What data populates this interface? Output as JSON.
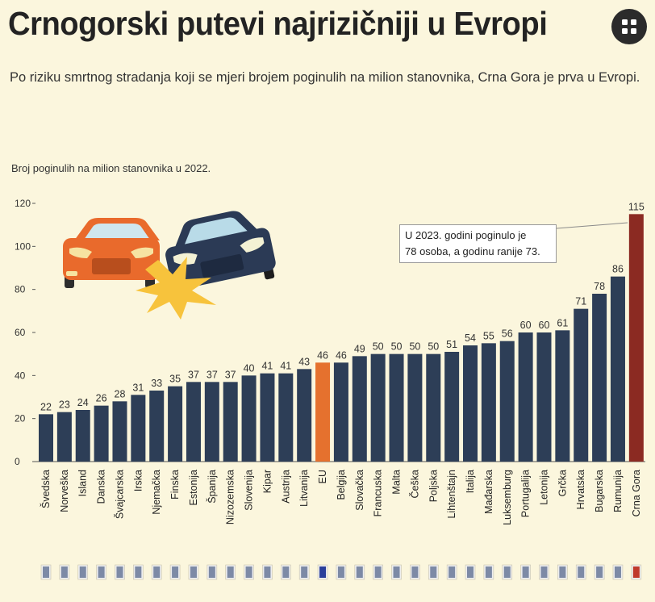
{
  "header": {
    "title": "Crnogorski putevi najrizičniji u Evropi",
    "subtitle": "Po riziku smrtnog stradanja koji se mjeri brojem poginulih na milion stanovnika, Crna Gora je prva u Evropi.",
    "chart_label": "Broj poginulih na milion stanovnika u 2022."
  },
  "callout": {
    "line1": "U 2023. godini poginulo je",
    "line2": "78 osoba, a godinu ranije 73."
  },
  "icons": {
    "share_button": "share-icon",
    "illustration": "car-crash-illustration"
  },
  "colors": {
    "background": "#fbf6dd",
    "bar_default": "#2d3e57",
    "bar_eu": "#e5712e",
    "bar_montenegro": "#8b2a22",
    "axis": "#555555"
  },
  "chart_data": {
    "type": "bar",
    "title": "Broj poginulih na milion stanovnika u 2022.",
    "xlabel": "",
    "ylabel": "",
    "ylim": [
      0,
      120
    ],
    "yticks": [
      0,
      20,
      40,
      60,
      80,
      100,
      120
    ],
    "grid": false,
    "legend": "none",
    "categories": [
      "Švedska",
      "Norveška",
      "Island",
      "Danska",
      "Švajcarska",
      "Irska",
      "Njemačka",
      "Finska",
      "Estonija",
      "Španija",
      "Nizozemska",
      "Slovenija",
      "Kipar",
      "Austrija",
      "Litvanija",
      "EU",
      "Belgija",
      "Slovačka",
      "Francuska",
      "Malta",
      "Češka",
      "Poljska",
      "Lihtenštajn",
      "Italija",
      "Mađarska",
      "Luksemburg",
      "Portugalija",
      "Letonija",
      "Grčka",
      "Hrvatska",
      "Bugarska",
      "Rumunija",
      "Crna Gora"
    ],
    "values": [
      22,
      23,
      24,
      26,
      28,
      31,
      33,
      35,
      37,
      37,
      37,
      40,
      41,
      41,
      43,
      46,
      46,
      49,
      50,
      50,
      50,
      50,
      51,
      54,
      55,
      56,
      60,
      60,
      61,
      71,
      78,
      86,
      115
    ],
    "highlight": {
      "EU": "#e5712e",
      "Crna Gora": "#8b2a22"
    }
  }
}
